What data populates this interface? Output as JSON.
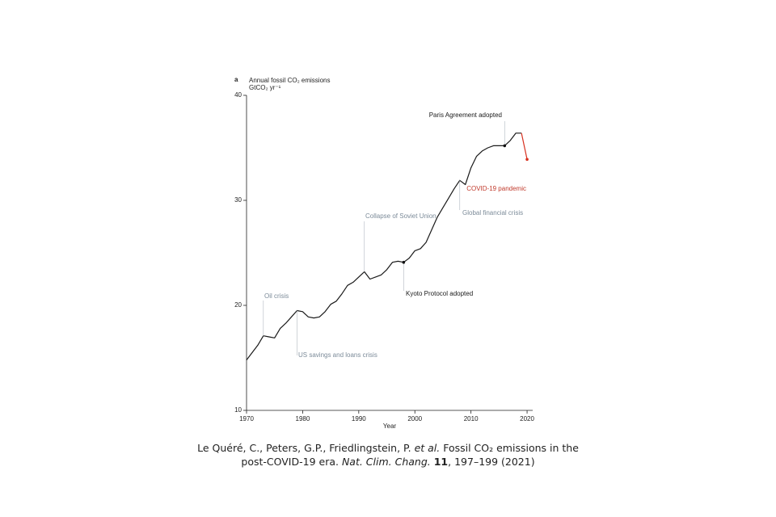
{
  "chart_data": {
    "type": "line",
    "panel": "a",
    "y_label": [
      "Annual fossil CO₂ emissions",
      "GtCO₂ yr⁻¹"
    ],
    "x_label": "Year",
    "x": [
      1970,
      1971,
      1972,
      1973,
      1974,
      1975,
      1976,
      1977,
      1978,
      1979,
      1980,
      1981,
      1982,
      1983,
      1984,
      1985,
      1986,
      1987,
      1988,
      1989,
      1990,
      1991,
      1992,
      1993,
      1994,
      1995,
      1996,
      1997,
      1998,
      1999,
      2000,
      2001,
      2002,
      2003,
      2004,
      2005,
      2006,
      2007,
      2008,
      2009,
      2010,
      2011,
      2012,
      2013,
      2014,
      2015,
      2016,
      2017,
      2018,
      2019,
      2020
    ],
    "series": [
      {
        "color": "#1a1a1a",
        "values": [
          14.8,
          15.5,
          16.2,
          17.1,
          17.0,
          16.9,
          17.8,
          18.3,
          18.9,
          19.5,
          19.4,
          18.9,
          18.8,
          18.9,
          19.4,
          20.1,
          20.4,
          21.1,
          21.9,
          22.2,
          22.7,
          23.2,
          22.5,
          22.7,
          22.9,
          23.4,
          24.1,
          24.2,
          24.1,
          24.5,
          25.2,
          25.4,
          26.0,
          27.2,
          28.4,
          29.3,
          30.2,
          31.1,
          31.9,
          31.5,
          33.1,
          34.2,
          34.7,
          35.0,
          35.2,
          35.2,
          35.2,
          35.7,
          36.4,
          36.4,
          null
        ]
      },
      {
        "color": "#d7301f",
        "values": [
          null,
          null,
          null,
          null,
          null,
          null,
          null,
          null,
          null,
          null,
          null,
          null,
          null,
          null,
          null,
          null,
          null,
          null,
          null,
          null,
          null,
          null,
          null,
          null,
          null,
          null,
          null,
          null,
          null,
          null,
          null,
          null,
          null,
          null,
          null,
          null,
          null,
          null,
          null,
          null,
          null,
          null,
          null,
          null,
          null,
          null,
          null,
          null,
          null,
          36.4,
          33.9
        ]
      }
    ],
    "xlim": [
      1970,
      2021
    ],
    "xticks": [
      1970,
      1980,
      1990,
      2000,
      2010,
      2020
    ],
    "ylim": [
      10,
      40
    ],
    "yticks": [
      10,
      20,
      30,
      40
    ],
    "annotations": [
      {
        "text": "Oil crisis",
        "x": 1973,
        "color": "#7c8b99"
      },
      {
        "text": "US savings and loans crisis",
        "x": 1979,
        "color": "#7c8b99"
      },
      {
        "text": "Collapse of Soviet Union",
        "x": 1991,
        "color": "#7c8b99"
      },
      {
        "text": "Kyoto Protocol adopted",
        "x": 1998,
        "color": "#1a1a1a"
      },
      {
        "text": "Global financial crisis",
        "x": 2008,
        "color": "#7c8b99"
      },
      {
        "text": "Paris Agreement adopted",
        "x": 2016,
        "color": "#1a1a1a"
      },
      {
        "text": "COVID-19 pandemic",
        "x": 2020,
        "color": "#c0392b"
      }
    ]
  },
  "citation": [
    "Le Quéré, C., Peters, G.P., Friedlingstein, P. ",
    "et al.",
    " Fossil CO₂ emissions in the post-COVID-19 era. ",
    "Nat. Clim. Chang.",
    " ",
    "11",
    ", 197–199 (2021)"
  ]
}
